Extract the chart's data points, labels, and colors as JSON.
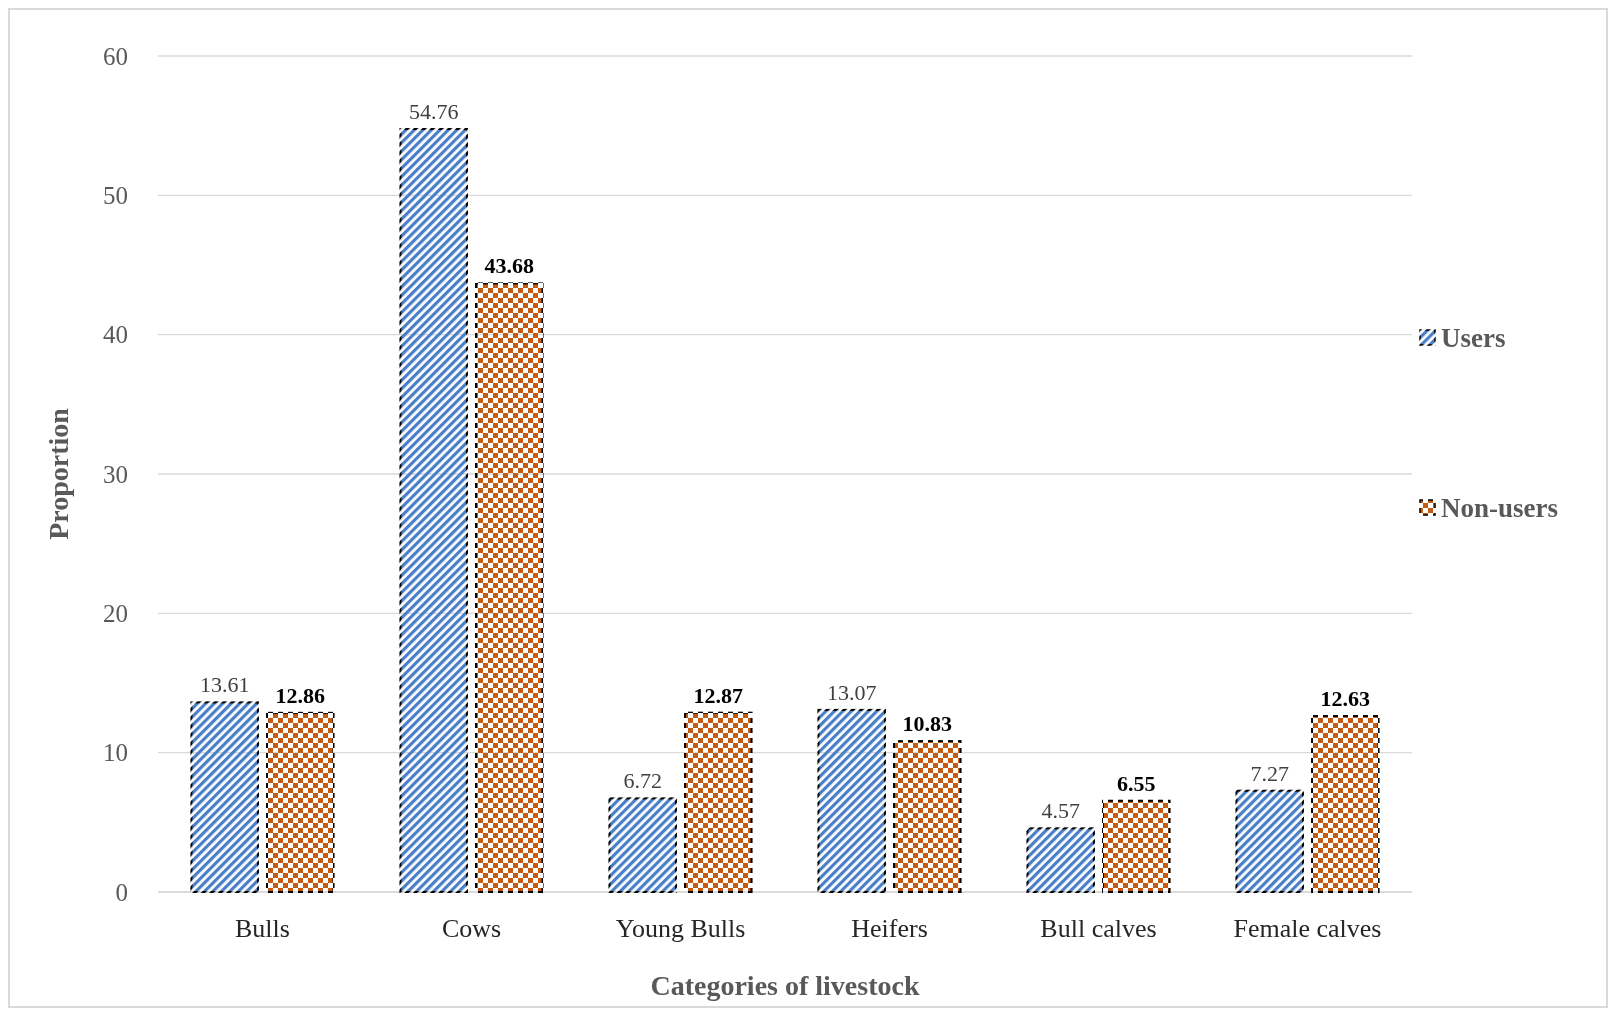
{
  "chart_data": {
    "type": "bar",
    "xlabel": "Categories of livestock",
    "ylabel": "Proportion",
    "categories": [
      "Bulls",
      "Cows",
      "Young Bulls",
      "Heifers",
      "Bull calves",
      "Female calves"
    ],
    "series": [
      {
        "name": "Users",
        "color": "#4a7fc8",
        "values": [
          13.61,
          54.76,
          6.72,
          13.07,
          4.57,
          7.27
        ]
      },
      {
        "name": "Non-users",
        "color": "#c55a11",
        "values": [
          12.86,
          43.68,
          12.87,
          10.83,
          6.55,
          12.63
        ]
      }
    ],
    "ylim": [
      0,
      60
    ],
    "yticks": [
      0,
      10,
      20,
      30,
      40,
      50,
      60
    ],
    "grid": "y",
    "legend": "right",
    "data_labels": true
  }
}
